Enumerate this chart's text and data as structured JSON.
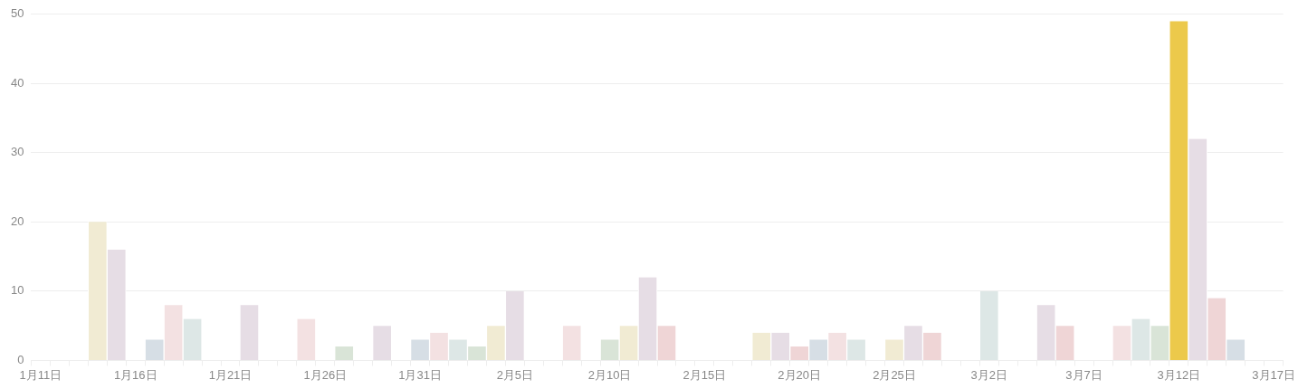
{
  "chart_data": {
    "type": "bar",
    "categories": [
      "1月11日",
      null,
      null,
      null,
      null,
      "1月16日",
      null,
      null,
      null,
      null,
      "1月21日",
      null,
      null,
      null,
      null,
      "1月26日",
      null,
      null,
      null,
      null,
      "1月31日",
      null,
      null,
      null,
      null,
      "2月5日",
      null,
      null,
      null,
      null,
      "2月10日",
      null,
      null,
      null,
      null,
      "2月15日",
      null,
      null,
      null,
      null,
      "2月20日",
      null,
      null,
      null,
      null,
      "2月25日",
      null,
      null,
      null,
      null,
      "3月2日",
      null,
      null,
      null,
      null,
      "3月7日",
      null,
      null,
      null,
      null,
      "3月12日",
      null,
      null,
      null,
      null,
      "3月17日"
    ],
    "values": [
      0,
      0,
      0,
      20,
      16,
      0,
      3,
      8,
      6,
      0,
      0,
      8,
      0,
      0,
      6,
      0,
      2,
      0,
      5,
      0,
      3,
      4,
      3,
      2,
      5,
      10,
      0,
      0,
      5,
      0,
      3,
      5,
      12,
      5,
      0,
      0,
      0,
      0,
      4,
      4,
      2,
      3,
      4,
      3,
      0,
      3,
      5,
      4,
      0,
      0,
      10,
      0,
      0,
      8,
      5,
      0,
      0,
      5,
      6,
      5,
      49,
      32,
      9,
      3,
      0,
      0
    ],
    "colors": [
      "#e6dde5",
      "#e6dde5",
      "#e6dde5",
      "#f1ebd3",
      "#e6dde5",
      "#e6dde5",
      "#d6dee5",
      "#f3e1e2",
      "#dde7e6",
      "#e6dde5",
      "#e6dde5",
      "#e6dde5",
      "#e6dde5",
      "#e6dde5",
      "#f3e1e2",
      "#e6dde5",
      "#d9e4d7",
      "#e6dde5",
      "#e6dde5",
      "#e6dde5",
      "#d6dee5",
      "#f3e1e2",
      "#dde7e6",
      "#d9e4d7",
      "#f1ebd3",
      "#e6dde5",
      "#e6dde5",
      "#e6dde5",
      "#f3e1e2",
      "#e6dde5",
      "#d9e4d7",
      "#f1ebd3",
      "#e6dde5",
      "#efd5d6",
      "#e6dde5",
      "#e6dde5",
      "#e6dde5",
      "#e6dde5",
      "#f1ebd3",
      "#e6dde5",
      "#efd5d6",
      "#d6dee5",
      "#f3e1e2",
      "#dde7e6",
      "#e6dde5",
      "#f1ebd3",
      "#e6dde5",
      "#efd5d6",
      "#e6dde5",
      "#e6dde5",
      "#dde7e6",
      "#e6dde5",
      "#e6dde5",
      "#e6dde5",
      "#efd5d6",
      "#e6dde5",
      "#e6dde5",
      "#f3e1e2",
      "#dde7e6",
      "#d9e4d7",
      "#ecc94b",
      "#e6dde5",
      "#efd5d6",
      "#d6dee5",
      "#e6dde5",
      "#e6dde5"
    ],
    "ylim": [
      0,
      50
    ],
    "yticks": [
      0,
      10,
      20,
      30,
      40,
      50
    ],
    "grid": "y"
  }
}
